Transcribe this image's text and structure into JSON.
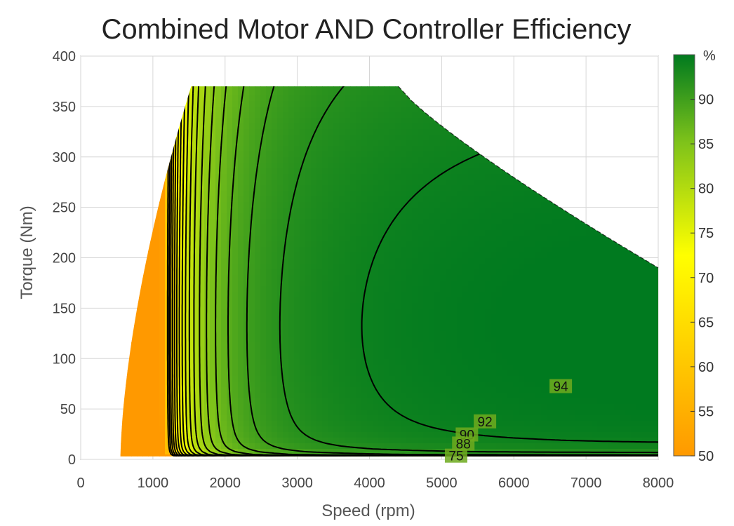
{
  "chart_data": {
    "type": "heatmap",
    "title": "Combined Motor AND Controller Efficiency",
    "xlabel": "Speed (rpm)",
    "ylabel": "Torque (Nm)",
    "xlim": [
      0,
      8000
    ],
    "ylim": [
      0,
      400
    ],
    "xticks": [
      0,
      1000,
      2000,
      3000,
      4000,
      5000,
      6000,
      7000,
      8000
    ],
    "yticks": [
      0,
      50,
      100,
      150,
      200,
      250,
      300,
      350,
      400
    ],
    "grid": true,
    "colorbar": {
      "label": "%",
      "range": [
        50,
        95
      ],
      "ticks": [
        50,
        55,
        60,
        65,
        70,
        75,
        80,
        85,
        90
      ],
      "colors": {
        "low": "#ff9900",
        "mid": "#ffff00",
        "high": "#007a1f"
      }
    },
    "operating_envelope": {
      "max_torque": 370,
      "max_speed": 8000,
      "corner_speed": 4400,
      "torque_at_max_speed": 190,
      "min_speed_at_low_torque": 550
    },
    "peak_efficiency_region": {
      "speed": 7000,
      "torque": 110,
      "efficiency": 95
    },
    "contour_labels": [
      {
        "text": "94",
        "speed": 6650,
        "torque": 72
      },
      {
        "text": "92",
        "speed": 5600,
        "torque": 37
      },
      {
        "text": "90",
        "speed": 5350,
        "torque": 24
      },
      {
        "text": "88",
        "speed": 5300,
        "torque": 15
      },
      {
        "text": "75",
        "speed": 5200,
        "torque": 3
      }
    ],
    "contour_levels": [
      94,
      92,
      90,
      88,
      86,
      84,
      82,
      80,
      78,
      76,
      74,
      72,
      70,
      68,
      66,
      64,
      62,
      60
    ]
  }
}
